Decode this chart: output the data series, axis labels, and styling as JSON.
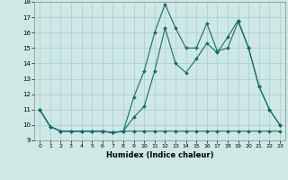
{
  "xlabel": "Humidex (Indice chaleur)",
  "xlim": [
    -0.5,
    23.5
  ],
  "ylim": [
    9,
    18
  ],
  "yticks": [
    9,
    10,
    11,
    12,
    13,
    14,
    15,
    16,
    17,
    18
  ],
  "xticks": [
    0,
    1,
    2,
    3,
    4,
    5,
    6,
    7,
    8,
    9,
    10,
    11,
    12,
    13,
    14,
    15,
    16,
    17,
    18,
    19,
    20,
    21,
    22,
    23
  ],
  "bg_color": "#cde8e5",
  "grid_color": "#aaccca",
  "line_color": "#1a6b6b",
  "line1_x": [
    0,
    1,
    2,
    3,
    4,
    5,
    6,
    7,
    8,
    9,
    10,
    11,
    12,
    13,
    14,
    15,
    16,
    17,
    18,
    19,
    20,
    21,
    22,
    23
  ],
  "line1_y": [
    11.0,
    9.9,
    9.6,
    9.6,
    9.6,
    9.6,
    9.6,
    9.5,
    9.6,
    9.6,
    9.6,
    9.6,
    9.6,
    9.6,
    9.6,
    9.6,
    9.6,
    9.6,
    9.6,
    9.6,
    9.6,
    9.6,
    9.6,
    9.6
  ],
  "line2_x": [
    0,
    1,
    2,
    3,
    4,
    5,
    6,
    7,
    8,
    9,
    10,
    11,
    12,
    13,
    14,
    15,
    16,
    17,
    18,
    19,
    20,
    21,
    22,
    23
  ],
  "line2_y": [
    11.0,
    9.9,
    9.6,
    9.6,
    9.6,
    9.6,
    9.6,
    9.5,
    9.6,
    11.8,
    13.5,
    16.0,
    17.85,
    16.3,
    15.0,
    15.0,
    16.6,
    14.8,
    15.0,
    16.7,
    15.0,
    12.5,
    11.0,
    10.0
  ],
  "line3_x": [
    0,
    1,
    2,
    3,
    4,
    5,
    6,
    7,
    8,
    9,
    10,
    11,
    12,
    13,
    14,
    15,
    16,
    17,
    18,
    19,
    20,
    21,
    22,
    23
  ],
  "line3_y": [
    11.0,
    9.9,
    9.6,
    9.6,
    9.6,
    9.6,
    9.6,
    9.5,
    9.6,
    10.5,
    11.2,
    13.5,
    16.3,
    14.0,
    13.4,
    14.3,
    15.3,
    14.7,
    15.7,
    16.8,
    15.0,
    12.5,
    11.0,
    10.0
  ]
}
